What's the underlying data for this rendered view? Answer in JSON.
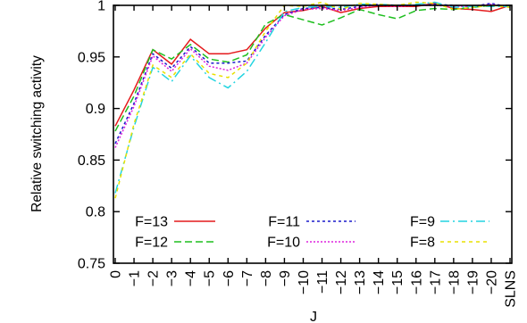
{
  "chart_data": {
    "type": "line",
    "title": "",
    "xlabel": "",
    "ylabel": "Relative switching activity",
    "categories": [
      "0",
      "-1",
      "-2",
      "-3",
      "-4",
      "-5",
      "-6",
      "-7",
      "-8",
      "-9",
      "-10",
      "-11",
      "-12",
      "-13",
      "-14",
      "-15",
      "-16",
      "-17",
      "-18",
      "-19",
      "-20",
      "SLNS"
    ],
    "extra_x_label": "J",
    "ylim": [
      0.75,
      1.0
    ],
    "yticks": [
      "0.75",
      "0.8",
      "0.85",
      "0.9",
      "0.95",
      "1"
    ],
    "grid": false,
    "legend_placement": "bottom-left-inside",
    "series": [
      {
        "name": "F=13",
        "color": "#e41a1c",
        "dash": "solid",
        "values": [
          0.883,
          0.918,
          0.957,
          0.943,
          0.967,
          0.953,
          0.953,
          0.957,
          0.978,
          0.993,
          0.995,
          0.999,
          0.993,
          0.997,
          0.999,
          0.999,
          0.999,
          1.002,
          0.997,
          0.996,
          0.994,
          1.0
        ]
      },
      {
        "name": "F=12",
        "color": "#1fbf1f",
        "dash": "8,4",
        "values": [
          0.878,
          0.912,
          0.957,
          0.948,
          0.962,
          0.948,
          0.945,
          0.952,
          0.982,
          0.991,
          0.986,
          0.981,
          0.988,
          0.996,
          0.991,
          0.987,
          0.995,
          0.997,
          0.996,
          0.998,
          1.0,
          0.999
        ]
      },
      {
        "name": "F=11",
        "color": "#1a1acc",
        "dash": "3,3",
        "values": [
          0.866,
          0.905,
          0.953,
          0.939,
          0.96,
          0.944,
          0.944,
          0.946,
          0.971,
          0.991,
          0.997,
          0.998,
          0.996,
          0.999,
          1.001,
          1.0,
          1.0,
          1.001,
          1.0,
          0.999,
          1.002,
          0.998
        ]
      },
      {
        "name": "F=10",
        "color": "#dd22dd",
        "dash": "2,2",
        "values": [
          0.862,
          0.902,
          0.951,
          0.936,
          0.958,
          0.941,
          0.937,
          0.944,
          0.969,
          0.99,
          0.996,
          0.997,
          0.995,
          0.998,
          1.0,
          0.999,
          1.0,
          1.0,
          0.999,
          0.999,
          1.001,
          0.998
        ]
      },
      {
        "name": "F=9",
        "color": "#22d4e0",
        "dash": "10,4,2,4",
        "values": [
          0.818,
          0.882,
          0.94,
          0.926,
          0.951,
          0.93,
          0.92,
          0.936,
          0.964,
          0.994,
          0.998,
          0.999,
          0.998,
          1.001,
          1.001,
          1.0,
          1.001,
          1.003,
          0.998,
          0.999,
          0.999,
          0.999
        ]
      },
      {
        "name": "F=8",
        "color": "#e8e000",
        "dash": "4,4",
        "values": [
          0.813,
          0.885,
          0.942,
          0.93,
          0.953,
          0.934,
          0.93,
          0.944,
          0.975,
          1.0,
          0.999,
          1.003,
          0.996,
          1.002,
          1.001,
          1.0,
          1.003,
          1.002,
          0.996,
          0.998,
          1.0,
          0.998
        ]
      }
    ]
  }
}
